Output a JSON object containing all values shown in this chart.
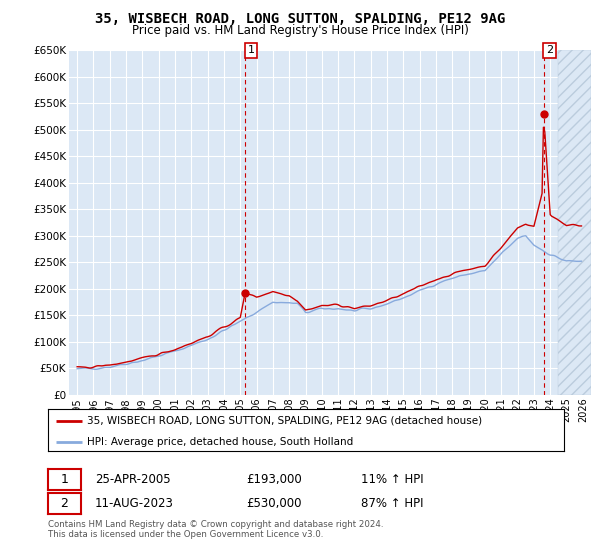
{
  "title": "35, WISBECH ROAD, LONG SUTTON, SPALDING, PE12 9AG",
  "subtitle": "Price paid vs. HM Land Registry's House Price Index (HPI)",
  "background_color": "#ffffff",
  "plot_bg_color": "#dce8f5",
  "grid_color": "#ffffff",
  "legend_label_red": "35, WISBECH ROAD, LONG SUTTON, SPALDING, PE12 9AG (detached house)",
  "legend_label_blue": "HPI: Average price, detached house, South Holland",
  "footnote": "Contains HM Land Registry data © Crown copyright and database right 2024.\nThis data is licensed under the Open Government Licence v3.0.",
  "sale1_date": "25-APR-2005",
  "sale1_price": "£193,000",
  "sale1_hpi": "11% ↑ HPI",
  "sale2_date": "11-AUG-2023",
  "sale2_price": "£530,000",
  "sale2_hpi": "87% ↑ HPI",
  "red_color": "#cc0000",
  "blue_color": "#88aadd",
  "vline_color": "#cc0000",
  "sale1_x": 2005.3,
  "sale1_y": 193000,
  "sale2_x": 2023.6,
  "sale2_y": 530000,
  "ylim": [
    0,
    650000
  ],
  "xlim": [
    1994.5,
    2026.5
  ],
  "yticks": [
    0,
    50000,
    100000,
    150000,
    200000,
    250000,
    300000,
    350000,
    400000,
    450000,
    500000,
    550000,
    600000,
    650000
  ],
  "ytick_labels": [
    "£0",
    "£50K",
    "£100K",
    "£150K",
    "£200K",
    "£250K",
    "£300K",
    "£350K",
    "£400K",
    "£450K",
    "£500K",
    "£550K",
    "£600K",
    "£650K"
  ],
  "x_tick_years": [
    1995,
    1996,
    1997,
    1998,
    1999,
    2000,
    2001,
    2002,
    2003,
    2004,
    2005,
    2006,
    2007,
    2008,
    2009,
    2010,
    2011,
    2012,
    2013,
    2014,
    2015,
    2016,
    2017,
    2018,
    2019,
    2020,
    2021,
    2022,
    2023,
    2024,
    2025,
    2026
  ]
}
